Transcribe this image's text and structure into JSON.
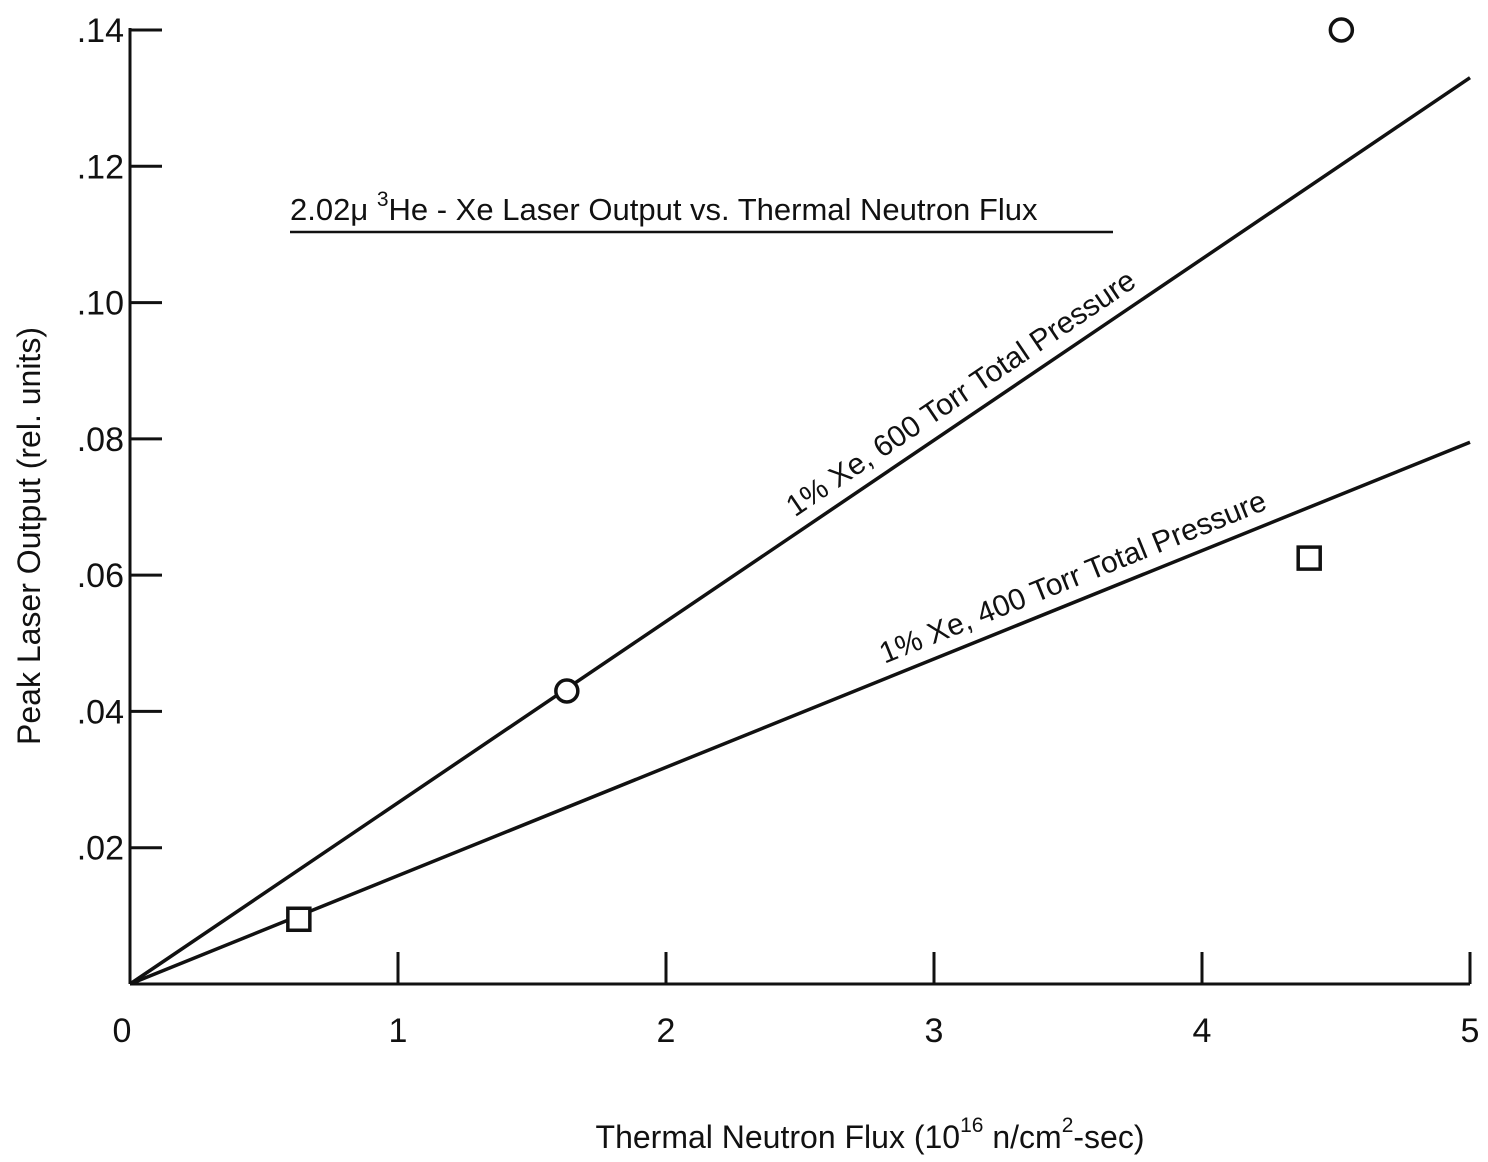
{
  "chart_data": {
    "type": "line",
    "title": {
      "prefix": "2.02μ ",
      "superscript": "3",
      "rest": "He - Xe Laser Output vs. Thermal Neutron Flux"
    },
    "xlabel": {
      "prefix": "Thermal Neutron Flux (10",
      "sup1": "16",
      "middle": " n/cm",
      "sup2": "2",
      "suffix": "-sec)"
    },
    "ylabel": "Peak Laser Output (rel. units)",
    "xlim": [
      0,
      5
    ],
    "ylim": [
      0,
      0.14
    ],
    "x_ticks": [
      {
        "value": 0,
        "label": "0"
      },
      {
        "value": 1,
        "label": "1"
      },
      {
        "value": 2,
        "label": "2"
      },
      {
        "value": 3,
        "label": "3"
      },
      {
        "value": 4,
        "label": "4"
      },
      {
        "value": 5,
        "label": "5"
      }
    ],
    "y_ticks": [
      {
        "value": 0.02,
        "label": ".02"
      },
      {
        "value": 0.04,
        "label": ".04"
      },
      {
        "value": 0.06,
        "label": ".06"
      },
      {
        "value": 0.08,
        "label": ".08"
      },
      {
        "value": 0.1,
        "label": ".10"
      },
      {
        "value": 0.12,
        "label": ".12"
      },
      {
        "value": 0.14,
        "label": ".14"
      }
    ],
    "series": [
      {
        "name": "1% Xe, 600 Torr Total Pressure",
        "marker": "circle",
        "line": {
          "x": [
            0,
            5
          ],
          "y": [
            0,
            0.133
          ]
        },
        "points": [
          {
            "x": 1.63,
            "y": 0.043
          },
          {
            "x": 4.52,
            "y": 0.14
          }
        ]
      },
      {
        "name": "1% Xe, 400 Torr Total Pressure",
        "marker": "square",
        "line": {
          "x": [
            0,
            5
          ],
          "y": [
            0,
            0.0795
          ]
        },
        "points": [
          {
            "x": 0.63,
            "y": 0.0095
          },
          {
            "x": 4.4,
            "y": 0.0625
          }
        ]
      }
    ],
    "grid": false,
    "legend": "none"
  }
}
